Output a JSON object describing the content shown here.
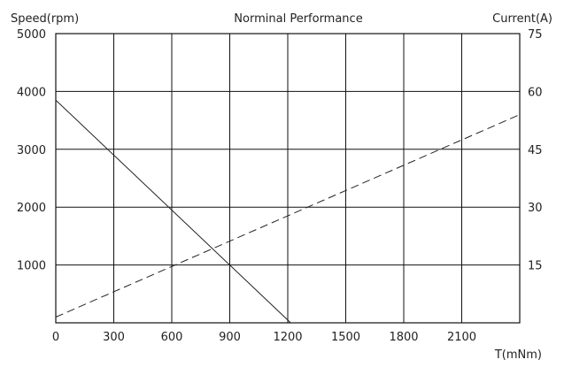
{
  "chart_data": {
    "type": "line",
    "title": "Norminal Performance",
    "xlabel": "T(mNm)",
    "ylabel_left": "Speed(rpm)",
    "ylabel_right": "Current(A)",
    "xlim": [
      0,
      2400
    ],
    "ylim_left": [
      0,
      5000
    ],
    "ylim_right": [
      0,
      75
    ],
    "x_ticks": [
      0,
      300,
      600,
      900,
      1200,
      1500,
      1800,
      2100
    ],
    "y_ticks_left": [
      1000,
      2000,
      3000,
      4000,
      5000
    ],
    "y_ticks_right": [
      15,
      30,
      45,
      60,
      75
    ],
    "grid": true,
    "series": [
      {
        "axis": "left",
        "style": "solid",
        "color": "#222222",
        "x": [
          0,
          1215
        ],
        "y": [
          3850,
          0
        ]
      },
      {
        "axis": "right",
        "style": "dashed",
        "color": "#222222",
        "x": [
          0,
          2400
        ],
        "y": [
          1.5,
          54
        ]
      }
    ]
  }
}
